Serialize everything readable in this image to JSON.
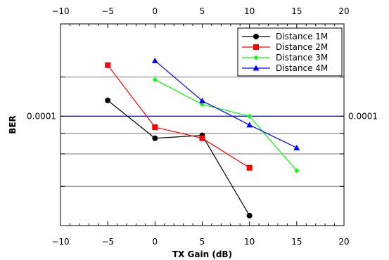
{
  "chart_data": {
    "type": "line",
    "xlabel": "TX Gain (dB)",
    "ylabel": "BER",
    "xlim": [
      -10,
      20
    ],
    "x_ticks": [
      -10,
      -5,
      0,
      5,
      10,
      15,
      20
    ],
    "x_tick_labels": [
      "−10",
      "−5",
      "0",
      "5",
      "10",
      "15",
      "20"
    ],
    "y_scale": "log",
    "ylim": [
      1.47e-05,
      0.000505
    ],
    "y_tick_labels": [
      {
        "value": 0.0001,
        "label": "0.0001"
      }
    ],
    "grid_y": [
      2.92e-05,
      5.17e-05,
      7.41e-05,
      0.0001,
      0.000199
    ],
    "reference_line": {
      "y": 0.0001,
      "color": "#0000ff"
    },
    "legend": "top-right",
    "series": [
      {
        "name": "Distance 1M",
        "color": "#000000",
        "marker": "circle",
        "x": [
          -5,
          0,
          5,
          10
        ],
        "y": [
          0.000132,
          6.8e-05,
          7.15e-05,
          1.75e-05
        ]
      },
      {
        "name": "Distance 2M",
        "color": "#ff0000",
        "marker": "square",
        "x": [
          -5,
          0,
          5,
          10
        ],
        "y": [
          0.000245,
          8.25e-05,
          6.8e-05,
          4.05e-05
        ]
      },
      {
        "name": "Distance 3M",
        "color": "#00ff00",
        "marker": "diamond",
        "x": [
          0,
          5,
          10,
          15
        ],
        "y": [
          0.00019,
          0.000123,
          0.0001,
          3.85e-05
        ]
      },
      {
        "name": "Distance 4M",
        "color": "#0000ff",
        "marker": "triangle",
        "x": [
          0,
          5,
          10,
          15
        ],
        "y": [
          0.000265,
          0.000131,
          8.58e-05,
          5.75e-05
        ]
      }
    ]
  }
}
